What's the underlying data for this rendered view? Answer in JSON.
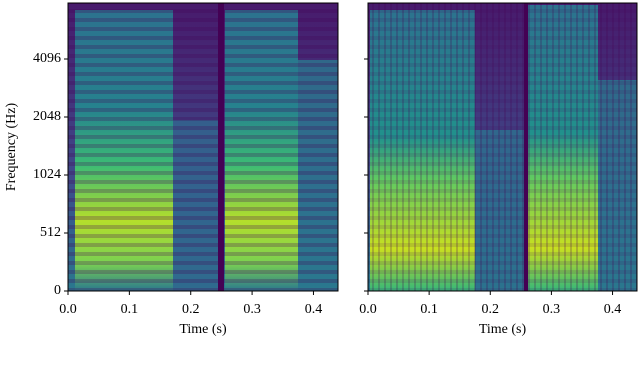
{
  "chart_data": [
    {
      "type": "spectrogram",
      "xlabel": "Time (s)",
      "ylabel": "Frequency (Hz)",
      "xlim": [
        0,
        0.44
      ],
      "xticks": [
        {
          "value": 0,
          "label": "0.0"
        },
        0.1,
        0.2,
        0.3,
        0.4
      ],
      "ylim": [
        0,
        8000
      ],
      "yticks": [
        0,
        512,
        1024,
        2048,
        4096
      ],
      "yscale": "symlog",
      "linthresh": 512,
      "base": 2,
      "show_ytick_labels": true
    },
    {
      "type": "spectrogram",
      "xlabel": "Time (s)",
      "xlim": [
        0,
        0.44
      ],
      "xticks": [
        {
          "value": 0,
          "label": "0.0"
        },
        0.1,
        0.2,
        0.3,
        0.4
      ],
      "ylim": [
        0,
        8000
      ],
      "yticks": [
        0,
        512,
        1024,
        2048,
        4096
      ],
      "yscale": "symlog",
      "linthresh": 512,
      "base": 2,
      "show_ytick_labels": false
    }
  ]
}
